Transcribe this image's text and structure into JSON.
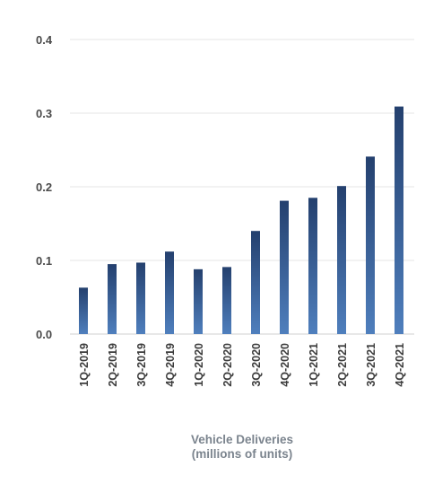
{
  "chart_data": {
    "type": "bar",
    "categories": [
      "1Q-2019",
      "2Q-2019",
      "3Q-2019",
      "4Q-2019",
      "1Q-2020",
      "2Q-2020",
      "3Q-2020",
      "4Q-2020",
      "1Q-2021",
      "2Q-2021",
      "3Q-2021",
      "4Q-2021"
    ],
    "values": [
      0.063,
      0.095,
      0.097,
      0.112,
      0.088,
      0.091,
      0.14,
      0.181,
      0.185,
      0.201,
      0.241,
      0.309
    ],
    "title": "",
    "xlabel": "Vehicle Deliveries",
    "xlabel_line2": "(millions of units)",
    "ylabel": "",
    "ylim": [
      0,
      0.4
    ],
    "yticks": [
      "0.0",
      "0.1",
      "0.2",
      "0.3",
      "0.4"
    ],
    "grid": true,
    "bar_color_top": "#24406e",
    "bar_color_bottom": "#4f7fbd"
  }
}
